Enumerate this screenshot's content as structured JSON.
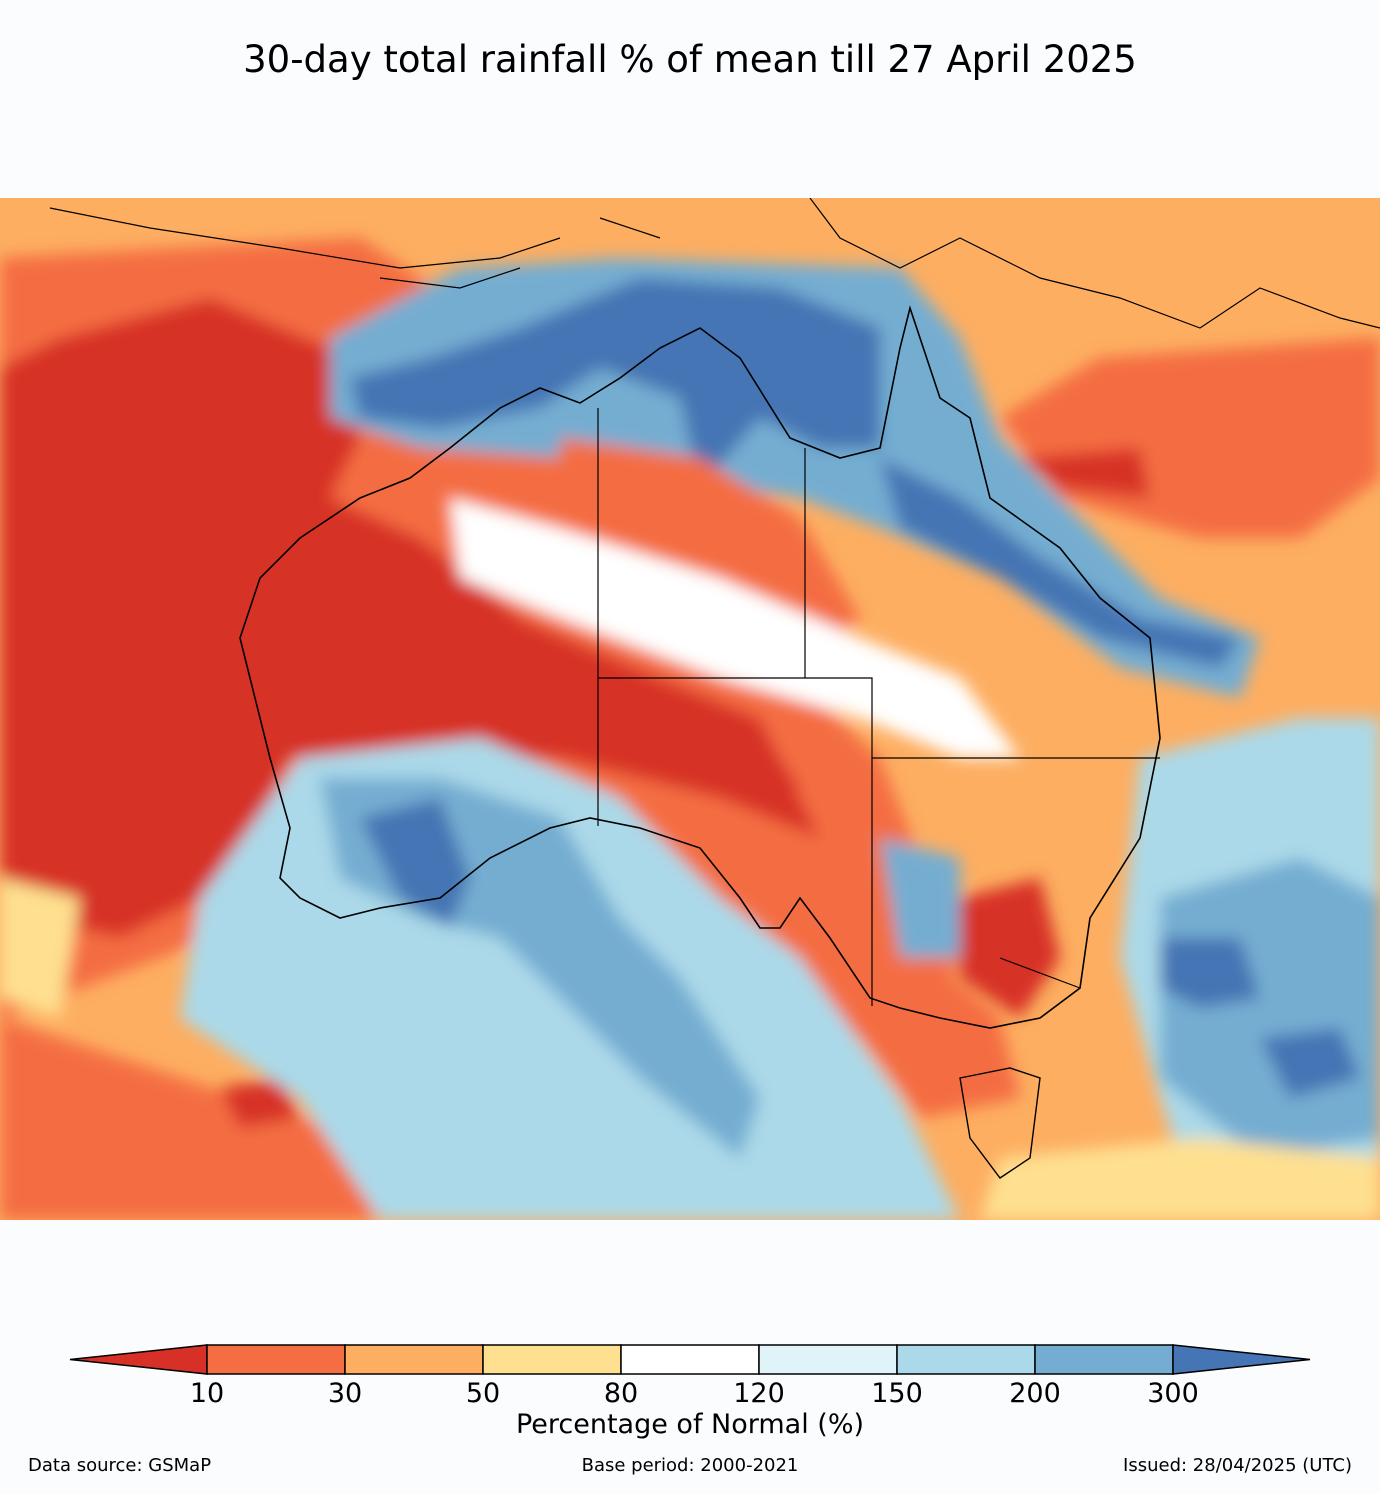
{
  "title": "30-day total rainfall % of mean till 27 April 2025",
  "colorbar": {
    "label": "Percentage of Normal (%)",
    "ticks": [
      "10",
      "30",
      "50",
      "80",
      "120",
      "150",
      "200",
      "300"
    ],
    "colors": [
      "#d73027",
      "#f46d43",
      "#fdae61",
      "#fee090",
      "#ffffff",
      "#e0f3f8",
      "#abd9e9",
      "#74add1",
      "#4575b4"
    ]
  },
  "footer": {
    "source": "Data source: GSMaP",
    "base_period": "Base period: 2000-2021",
    "issued": "Issued: 28/04/2025 (UTC)"
  },
  "map": {
    "region": "Australia",
    "class_colors": {
      "lt10": "#d73027",
      "c10_30": "#f46d43",
      "c30_50": "#fdae61",
      "c50_80": "#fee090",
      "c80_120": "#ffffff",
      "c120_150": "#e0f3f8",
      "c150_200": "#abd9e9",
      "c200_300": "#74add1",
      "gt300": "#4575b4"
    }
  }
}
